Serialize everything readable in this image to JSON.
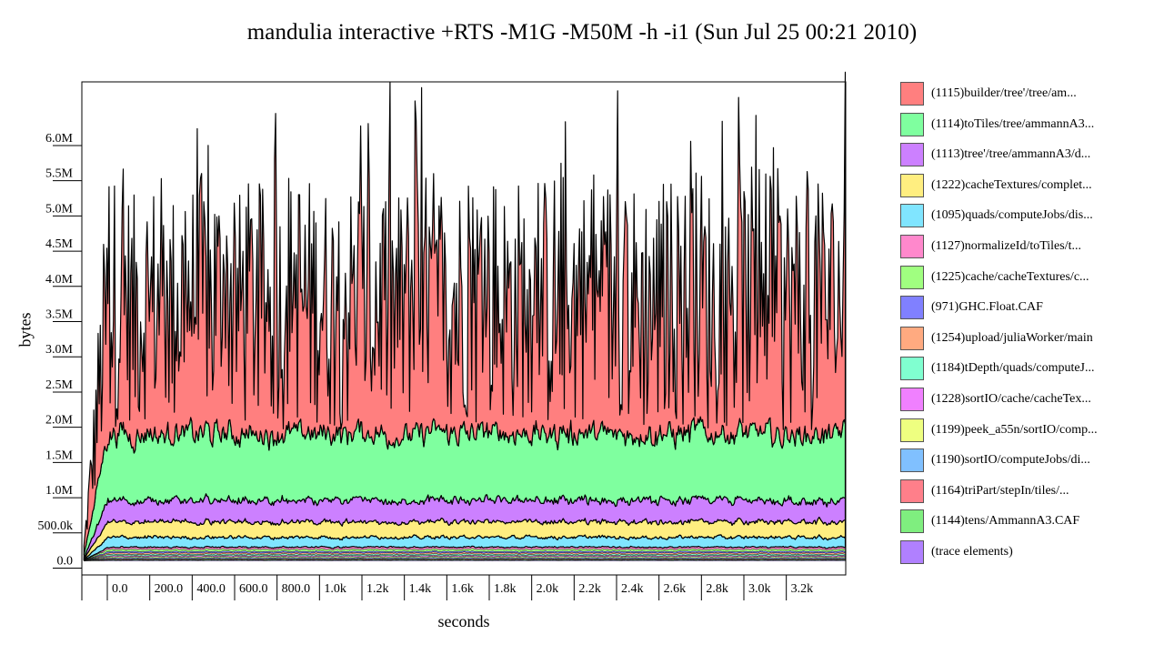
{
  "chart_data": {
    "type": "area",
    "title": "mandulia interactive +RTS -M1G -M50M -h -i1 (Sun Jul 25 00:21 2010)",
    "xlabel": "seconds",
    "ylabel": "bytes",
    "xlim": [
      -120,
      3480
    ],
    "ylim": [
      -200000,
      6800000
    ],
    "x_ticks": [
      {
        "value": 0,
        "label": "0.0"
      },
      {
        "value": 200,
        "label": "200.0"
      },
      {
        "value": 400,
        "label": "400.0"
      },
      {
        "value": 600,
        "label": "600.0"
      },
      {
        "value": 800,
        "label": "800.0"
      },
      {
        "value": 1000,
        "label": "1.0k"
      },
      {
        "value": 1200,
        "label": "1.2k"
      },
      {
        "value": 1400,
        "label": "1.4k"
      },
      {
        "value": 1600,
        "label": "1.6k"
      },
      {
        "value": 1800,
        "label": "1.8k"
      },
      {
        "value": 2000,
        "label": "2.0k"
      },
      {
        "value": 2200,
        "label": "2.2k"
      },
      {
        "value": 2400,
        "label": "2.4k"
      },
      {
        "value": 2600,
        "label": "2.6k"
      },
      {
        "value": 2800,
        "label": "2.8k"
      },
      {
        "value": 3000,
        "label": "3.0k"
      },
      {
        "value": 3200,
        "label": "3.2k"
      }
    ],
    "y_ticks": [
      {
        "value": 0,
        "label": "0.0"
      },
      {
        "value": 500000,
        "label": "500.0k"
      },
      {
        "value": 1000000,
        "label": "1.0M"
      },
      {
        "value": 1500000,
        "label": "1.5M"
      },
      {
        "value": 2000000,
        "label": "2.0M"
      },
      {
        "value": 2500000,
        "label": "2.5M"
      },
      {
        "value": 3000000,
        "label": "3.0M"
      },
      {
        "value": 3500000,
        "label": "3.5M"
      },
      {
        "value": 4000000,
        "label": "4.0M"
      },
      {
        "value": 4500000,
        "label": "4.5M"
      },
      {
        "value": 5000000,
        "label": "5.0M"
      },
      {
        "value": 5500000,
        "label": "5.5M"
      },
      {
        "value": 6000000,
        "label": "6.0M"
      }
    ],
    "grid": false,
    "legend_position": "right",
    "series": [
      {
        "name": "(1115)builder/tree'/tree/am...",
        "color": "#ff7f7f",
        "typical_bytes": 1700000,
        "variability": 1800000
      },
      {
        "name": "(1114)toTiles/tree/ammannA3...",
        "color": "#7fff9f",
        "typical_bytes": 950000,
        "variability": 300000
      },
      {
        "name": "(1113)tree'/tree/ammannA3/d...",
        "color": "#cc80ff",
        "typical_bytes": 300000,
        "variability": 90000
      },
      {
        "name": "(1222)cacheTextures/complet...",
        "color": "#ffee80",
        "typical_bytes": 220000,
        "variability": 50000
      },
      {
        "name": "(1095)quads/computeJobs/dis...",
        "color": "#80e5ff",
        "typical_bytes": 140000,
        "variability": 40000
      },
      {
        "name": "(1127)normalizeId/toTiles/t...",
        "color": "#ff88cc",
        "typical_bytes": 30000,
        "variability": 10000
      },
      {
        "name": "(1225)cache/cacheTextures/c...",
        "color": "#a0ff80",
        "typical_bytes": 30000,
        "variability": 10000
      },
      {
        "name": "(971)GHC.Float.CAF",
        "color": "#8080ff",
        "typical_bytes": 20000,
        "variability": 5000
      },
      {
        "name": "(1254)upload/juliaWorker/main",
        "color": "#ffaa80",
        "typical_bytes": 20000,
        "variability": 5000
      },
      {
        "name": "(1184)tDepth/quads/computeJ...",
        "color": "#80ffd0",
        "typical_bytes": 20000,
        "variability": 5000
      },
      {
        "name": "(1228)sortIO/cache/cacheTex...",
        "color": "#f080ff",
        "typical_bytes": 15000,
        "variability": 5000
      },
      {
        "name": "(1199)peek_a55n/sortIO/comp...",
        "color": "#eeff80",
        "typical_bytes": 15000,
        "variability": 5000
      },
      {
        "name": "(1190)sortIO/computeJobs/di...",
        "color": "#80c0ff",
        "typical_bytes": 15000,
        "variability": 5000
      },
      {
        "name": "(1164)triPart/stepIn/tiles/...",
        "color": "#ff7f8a",
        "typical_bytes": 10000,
        "variability": 4000
      },
      {
        "name": "(1144)tens/AmmannA3.CAF",
        "color": "#7fee7f",
        "typical_bytes": 10000,
        "variability": 4000
      },
      {
        "name": "(trace elements)",
        "color": "#b080ff",
        "typical_bytes": 10000,
        "variability": 4000
      }
    ]
  }
}
